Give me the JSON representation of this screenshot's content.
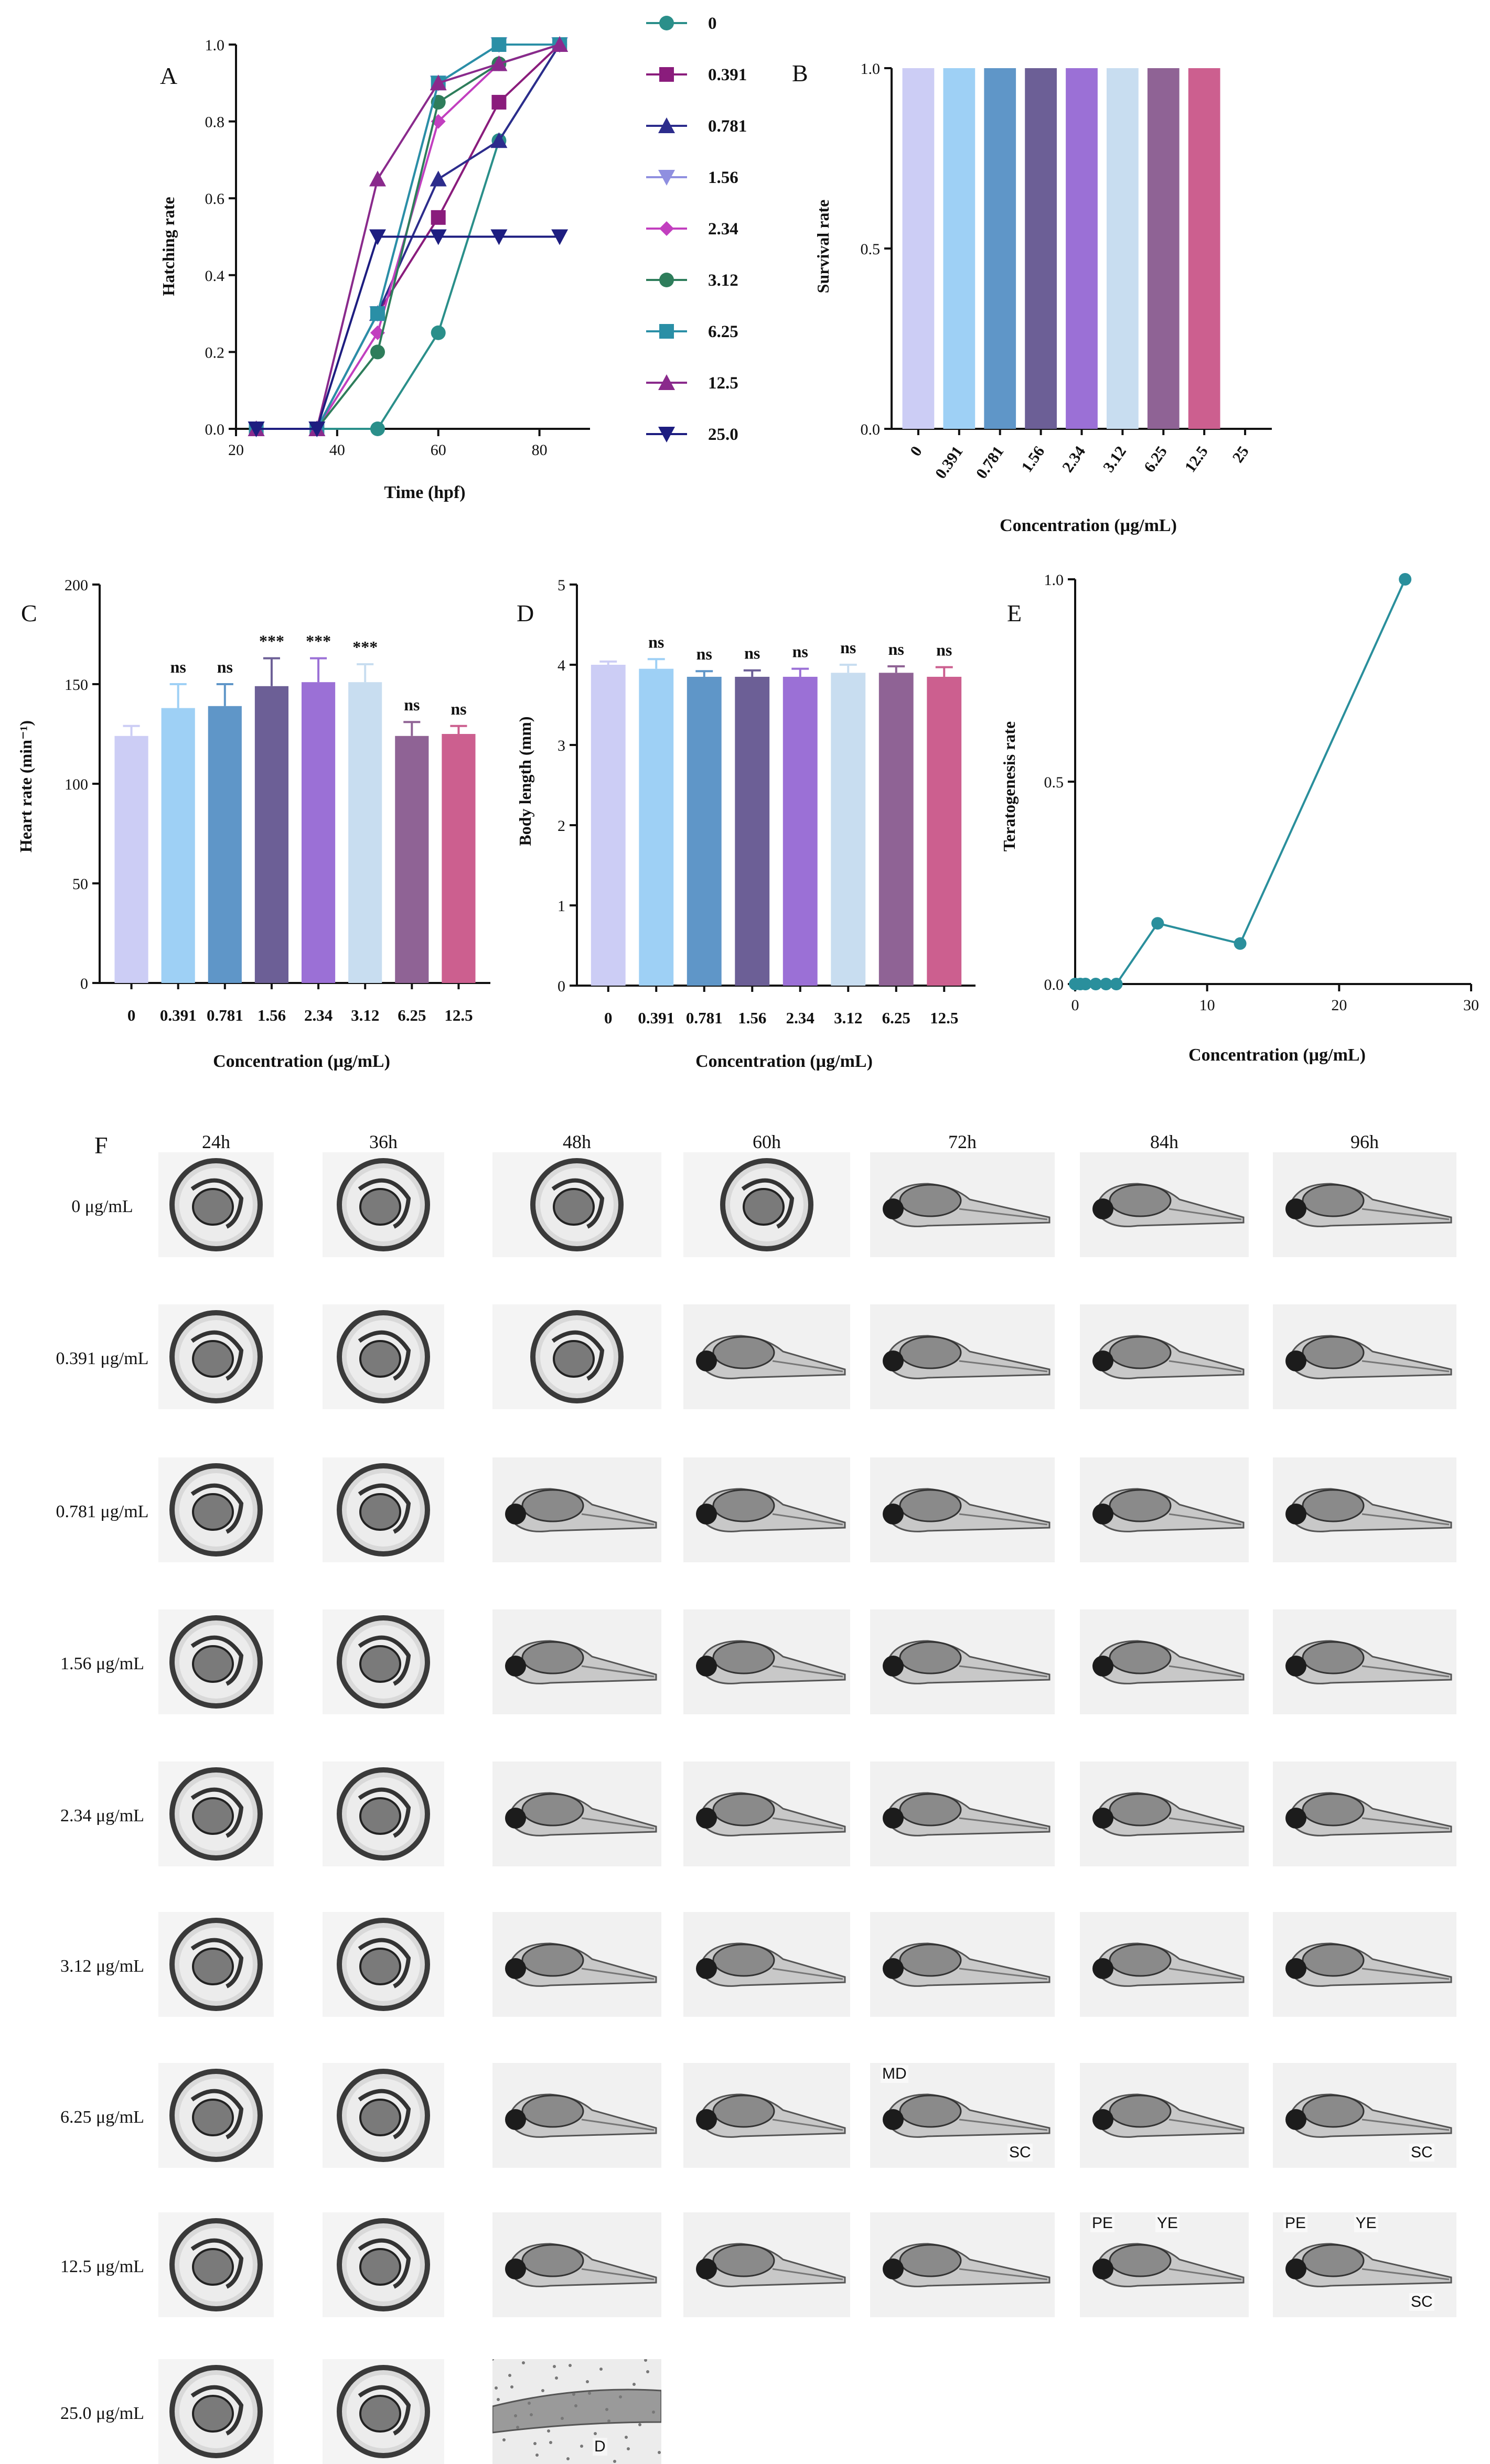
{
  "chart_data": [
    {
      "panel": "A",
      "type": "line",
      "xlabel": "Time (hpf)",
      "ylabel": "Hatching rate",
      "xlim": [
        20,
        90
      ],
      "ylim": [
        0,
        1
      ],
      "xticks": [
        20,
        40,
        60,
        80
      ],
      "yticks": [
        0.0,
        0.2,
        0.4,
        0.6,
        0.8,
        1.0
      ],
      "x": [
        24,
        36,
        48,
        60,
        72,
        84
      ],
      "series": [
        {
          "name": "0",
          "color": "#2a8f8a",
          "marker": "circle",
          "values": [
            0,
            0,
            0,
            0.25,
            0.75,
            1.0
          ]
        },
        {
          "name": "0.391",
          "color": "#8a1c7c",
          "marker": "square",
          "values": [
            0,
            0,
            0.3,
            0.55,
            0.85,
            1.0
          ]
        },
        {
          "name": "0.781",
          "color": "#2c2c8c",
          "marker": "triangle-up",
          "values": [
            0,
            0,
            0.3,
            0.65,
            0.75,
            1.0
          ]
        },
        {
          "name": "1.56",
          "color": "#8f8fe0",
          "marker": "triangle-down",
          "values": [
            0,
            0,
            0.3,
            0.9,
            1.0,
            1.0
          ]
        },
        {
          "name": "2.34",
          "color": "#c23fbf",
          "marker": "diamond",
          "values": [
            0,
            0,
            0.25,
            0.8,
            0.95,
            1.0
          ]
        },
        {
          "name": "3.12",
          "color": "#2e7d5b",
          "marker": "circle",
          "values": [
            0,
            0,
            0.2,
            0.85,
            0.95,
            1.0
          ]
        },
        {
          "name": "6.25",
          "color": "#2a8fa6",
          "marker": "square",
          "values": [
            0,
            0,
            0.3,
            0.9,
            1.0,
            1.0
          ]
        },
        {
          "name": "12.5",
          "color": "#8a2a8c",
          "marker": "triangle-up",
          "values": [
            0,
            0,
            0.65,
            0.9,
            0.95,
            1.0
          ]
        },
        {
          "name": "25.0",
          "color": "#1d1d80",
          "marker": "triangle-down",
          "values": [
            0,
            0,
            0.5,
            0.5,
            0.5,
            0.5
          ]
        }
      ]
    },
    {
      "panel": "B",
      "type": "bar",
      "xlabel": "Concentration (µg/mL)",
      "ylabel": "Survival rate",
      "ylim": [
        0,
        1
      ],
      "yticks": [
        0.0,
        0.5,
        1.0
      ],
      "categories": [
        "0",
        "0.391",
        "0.781",
        "1.56",
        "2.34",
        "3.12",
        "6.25",
        "12.5",
        "25"
      ],
      "values": [
        1.0,
        1.0,
        1.0,
        1.0,
        1.0,
        1.0,
        1.0,
        1.0,
        0
      ],
      "colors": [
        "#cccdf5",
        "#9ed0f5",
        "#5f96c8",
        "#6c5f96",
        "#9b70d6",
        "#c8ddf0",
        "#8f6395",
        "#cc5f8f",
        "#ffffff"
      ]
    },
    {
      "panel": "C",
      "type": "bar",
      "xlabel": "Concentration (µg/mL)",
      "ylabel": "Heart rate (min⁻¹)",
      "ylim": [
        0,
        200
      ],
      "yticks": [
        0,
        50,
        100,
        150,
        200
      ],
      "categories": [
        "0",
        "0.391",
        "0.781",
        "1.56",
        "2.34",
        "3.12",
        "6.25",
        "12.5"
      ],
      "values": [
        124,
        138,
        139,
        149,
        151,
        151,
        124,
        125
      ],
      "errors": [
        5,
        12,
        11,
        14,
        12,
        9,
        7,
        4
      ],
      "annotations": [
        "",
        "ns",
        "ns",
        "***",
        "***",
        "***",
        "ns",
        "ns"
      ],
      "colors": [
        "#cccdf5",
        "#9ed0f5",
        "#5f96c8",
        "#6c5f96",
        "#9b70d6",
        "#c8ddf0",
        "#8f6395",
        "#cc5f8f"
      ]
    },
    {
      "panel": "D",
      "type": "bar",
      "xlabel": "Concentration (µg/mL)",
      "ylabel": "Body length (mm)",
      "ylim": [
        0,
        5
      ],
      "yticks": [
        0,
        1,
        2,
        3,
        4,
        5
      ],
      "categories": [
        "0",
        "0.391",
        "0.781",
        "1.56",
        "2.34",
        "3.12",
        "6.25",
        "12.5"
      ],
      "values": [
        4.0,
        3.95,
        3.85,
        3.85,
        3.85,
        3.9,
        3.9,
        3.85
      ],
      "errors": [
        0.04,
        0.12,
        0.07,
        0.08,
        0.1,
        0.1,
        0.08,
        0.12
      ],
      "annotations": [
        "",
        "ns",
        "ns",
        "ns",
        "ns",
        "ns",
        "ns",
        "ns"
      ],
      "colors": [
        "#cccdf5",
        "#9ed0f5",
        "#5f96c8",
        "#6c5f96",
        "#9b70d6",
        "#c8ddf0",
        "#8f6395",
        "#cc5f8f"
      ]
    },
    {
      "panel": "E",
      "type": "line",
      "xlabel": "Concentration (µg/mL)",
      "ylabel": "Teratogenesis rate",
      "xlim": [
        0,
        30
      ],
      "ylim": [
        0,
        1
      ],
      "xticks": [
        0,
        10,
        20,
        30
      ],
      "yticks": [
        0.0,
        0.5,
        1.0
      ],
      "color": "#2a8f9c",
      "x": [
        0,
        0.391,
        0.781,
        1.56,
        2.34,
        3.12,
        6.25,
        12.5,
        25
      ],
      "y": [
        0,
        0,
        0,
        0,
        0,
        0,
        0.15,
        0.1,
        1.0
      ]
    }
  ],
  "panel_F": {
    "label": "F",
    "times": [
      "24h",
      "36h",
      "48h",
      "60h",
      "72h",
      "84h",
      "96h"
    ],
    "rows": [
      {
        "label": "0 μg/mL",
        "stages": [
          "egg",
          "egg",
          "egg",
          "egg",
          "larva",
          "larva",
          "larva"
        ]
      },
      {
        "label": "0.391 μg/mL",
        "stages": [
          "egg",
          "egg",
          "egg",
          "larva",
          "larva",
          "larva",
          "larva"
        ]
      },
      {
        "label": "0.781 μg/mL",
        "stages": [
          "egg",
          "egg",
          "larva",
          "larva",
          "larva",
          "larva",
          "larva"
        ]
      },
      {
        "label": "1.56 μg/mL",
        "stages": [
          "egg",
          "egg",
          "larva",
          "larva",
          "larva",
          "larva",
          "larva"
        ]
      },
      {
        "label": "2.34 μg/mL",
        "stages": [
          "egg",
          "egg",
          "larva",
          "larva",
          "larva",
          "larva",
          "larva"
        ]
      },
      {
        "label": "3.12 μg/mL",
        "stages": [
          "egg",
          "egg",
          "larva",
          "larva",
          "larva",
          "larva",
          "larva"
        ]
      },
      {
        "label": "6.25 μg/mL",
        "stages": [
          "egg",
          "egg",
          "larva",
          "larva",
          "larva",
          "larva",
          "larva"
        ]
      },
      {
        "label": "12.5 μg/mL",
        "stages": [
          "egg",
          "egg",
          "larva",
          "larva",
          "larva",
          "larva",
          "larva"
        ]
      },
      {
        "label": "25.0 μg/mL",
        "stages": [
          "egg",
          "egg",
          "dead",
          "",
          "",
          "",
          ""
        ]
      }
    ],
    "annotations": [
      {
        "row": 6,
        "col": 4,
        "labels": [
          "MD",
          "SC"
        ]
      },
      {
        "row": 6,
        "col": 6,
        "labels": [
          "SC"
        ]
      },
      {
        "row": 7,
        "col": 5,
        "labels": [
          "PE",
          "YE"
        ]
      },
      {
        "row": 7,
        "col": 6,
        "labels": [
          "PE",
          "YE",
          "SC"
        ]
      },
      {
        "row": 8,
        "col": 2,
        "labels": [
          "D"
        ]
      }
    ]
  }
}
